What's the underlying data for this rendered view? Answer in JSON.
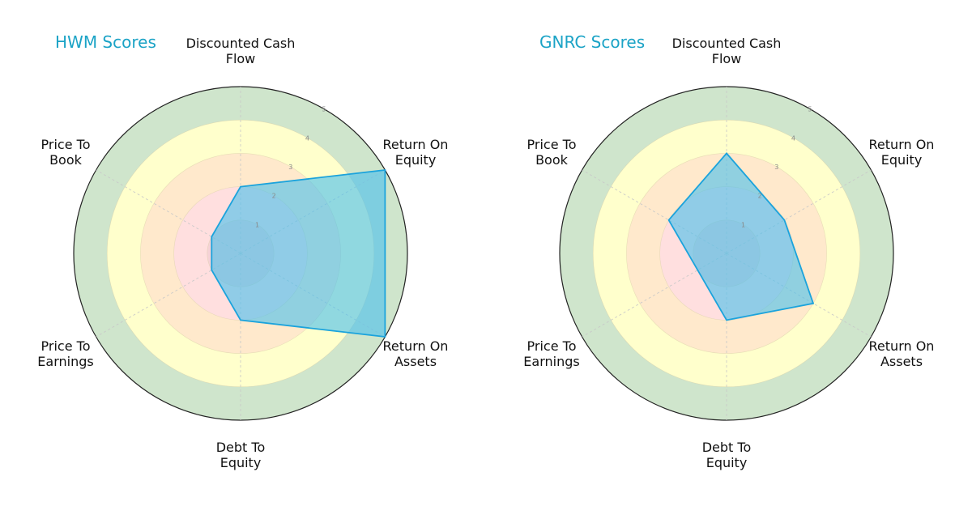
{
  "colors": {
    "title": "#1ba3c6",
    "polygon_fill": "#4cc0ec",
    "polygon_stroke": "#1ba3dc",
    "ring_0_1": "#f5d2d6",
    "ring_1_2": "#ffdfdf",
    "ring_2_3": "#ffe9cc",
    "ring_3_4": "#ffffcc",
    "ring_4_5": "#cfe5cc",
    "outer_circle": "#222222",
    "grid": "#c8c8c8"
  },
  "axes": [
    "Discounted Cash Flow",
    "Return On Equity",
    "Return On Assets",
    "Debt To Equity",
    "Price To Earnings",
    "Price To Book"
  ],
  "axis_labels": {
    "dcf": "Discounted Cash\nFlow",
    "roe": "Return On\nEquity",
    "roa": "Return On\nAssets",
    "de": "Debt To\nEquity",
    "pe": "Price To\nEarnings",
    "pb": "Price To\nBook"
  },
  "ticks": [
    "1",
    "2",
    "3",
    "4",
    "5"
  ],
  "charts": [
    {
      "title": "HWM Scores"
    },
    {
      "title": "GNRC Scores"
    }
  ],
  "chart_data": [
    {
      "type": "radar",
      "title": "HWM Scores",
      "categories": [
        "Discounted Cash Flow",
        "Return On Equity",
        "Return On Assets",
        "Debt To Equity",
        "Price To Earnings",
        "Price To Book"
      ],
      "values": [
        2,
        5,
        5,
        2,
        1,
        1
      ],
      "rlim": [
        0,
        5
      ],
      "rticks": [
        1,
        2,
        3,
        4,
        5
      ],
      "bands": [
        {
          "range": [
            0,
            1
          ],
          "color": "#f5d2d6"
        },
        {
          "range": [
            1,
            2
          ],
          "color": "#ffdfdf"
        },
        {
          "range": [
            2,
            3
          ],
          "color": "#ffe9cc"
        },
        {
          "range": [
            3,
            4
          ],
          "color": "#ffffcc"
        },
        {
          "range": [
            4,
            5
          ],
          "color": "#cfe5cc"
        }
      ]
    },
    {
      "type": "radar",
      "title": "GNRC Scores",
      "categories": [
        "Discounted Cash Flow",
        "Return On Equity",
        "Return On Assets",
        "Debt To Equity",
        "Price To Earnings",
        "Price To Book"
      ],
      "values": [
        3,
        2,
        3,
        2,
        1,
        2
      ],
      "rlim": [
        0,
        5
      ],
      "rticks": [
        1,
        2,
        3,
        4,
        5
      ],
      "bands": [
        {
          "range": [
            0,
            1
          ],
          "color": "#f5d2d6"
        },
        {
          "range": [
            1,
            2
          ],
          "color": "#ffdfdf"
        },
        {
          "range": [
            2,
            3
          ],
          "color": "#ffe9cc"
        },
        {
          "range": [
            3,
            4
          ],
          "color": "#ffffcc"
        },
        {
          "range": [
            4,
            5
          ],
          "color": "#cfe5cc"
        }
      ]
    }
  ]
}
